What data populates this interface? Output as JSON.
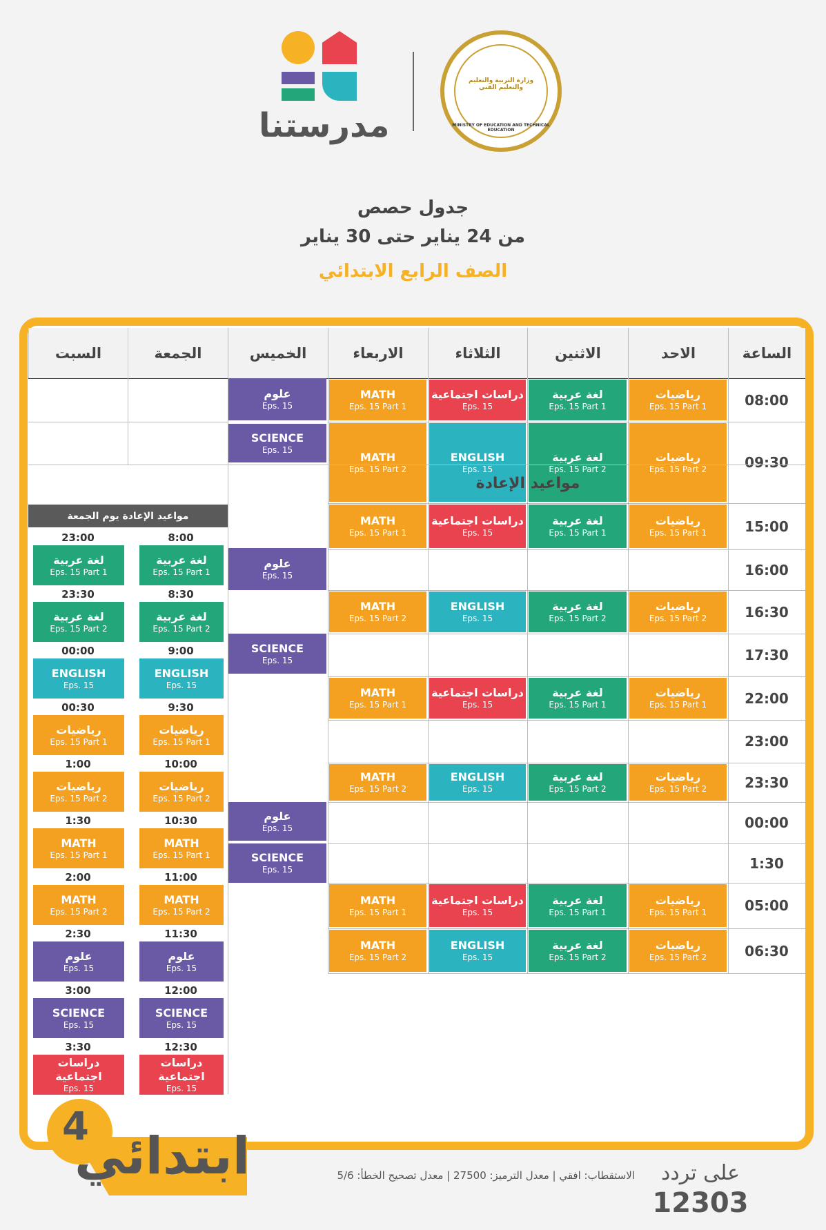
{
  "header": {
    "brand_logo_text": "مدرستنا",
    "ministry_seal_text_en": "MINISTRY OF EDUCATION AND TECHNICAL EDUCATION",
    "ministry_seal_text_ar": "وزارة التربية والتعليم والتعليم الفني",
    "title": "جدول حصص",
    "date_range": "من 24 يناير حتى 30 يناير",
    "grade": "الصف الرابع الابتدائي"
  },
  "colors": {
    "math": "#f4a020",
    "arabic": "#22a67a",
    "social": "#e8434f",
    "english": "#2bb3c0",
    "science": "#6a5aa6",
    "frame": "#f6b224",
    "replay_header": "#5a5a5a"
  },
  "columns": [
    "الساعة",
    "الاحد",
    "الاثنين",
    "الثلاثاء",
    "الاربعاء",
    "الخميس",
    "الجمعة",
    "السبت"
  ],
  "replay_title": "مواعيد الإعادة",
  "rows": [
    {
      "time": "08:00",
      "cells": [
        {
          "s": "رياضيات",
          "e": "Eps. 15 Part 1",
          "c": "math"
        },
        {
          "s": "لغة عربية",
          "e": "Eps. 15 Part 1",
          "c": "arabic"
        },
        {
          "s": "دراسات اجتماعية",
          "e": "Eps. 15",
          "c": "social"
        },
        {
          "s": "MATH",
          "e": "Eps. 15 Part 1",
          "c": "math"
        }
      ],
      "thu": {
        "s": "علوم",
        "e": "Eps. 15",
        "c": "science"
      }
    },
    {
      "time": "09:30",
      "cells": [
        {
          "s": "رياضيات",
          "e": "Eps. 15 Part 2",
          "c": "math"
        },
        {
          "s": "لغة عربية",
          "e": "Eps. 15 Part 2",
          "c": "arabic"
        },
        {
          "s": "ENGLISH",
          "e": "Eps. 15",
          "c": "english"
        },
        {
          "s": "MATH",
          "e": "Eps. 15 Part 2",
          "c": "math"
        }
      ],
      "thu": {
        "s": "SCIENCE",
        "e": "Eps. 15",
        "c": "science"
      }
    },
    {
      "time": "15:00",
      "cells": [
        {
          "s": "رياضيات",
          "e": "Eps. 15 Part 1",
          "c": "math"
        },
        {
          "s": "لغة عربية",
          "e": "Eps. 15 Part 1",
          "c": "arabic"
        },
        {
          "s": "دراسات اجتماعية",
          "e": "Eps. 15",
          "c": "social"
        },
        {
          "s": "MATH",
          "e": "Eps. 15 Part 1",
          "c": "math"
        }
      ]
    },
    {
      "time": "16:00",
      "cells": [],
      "thu": {
        "s": "علوم",
        "e": "Eps. 15",
        "c": "science"
      }
    },
    {
      "time": "16:30",
      "cells": [
        {
          "s": "رياضيات",
          "e": "Eps. 15 Part 2",
          "c": "math"
        },
        {
          "s": "لغة عربية",
          "e": "Eps. 15 Part 2",
          "c": "arabic"
        },
        {
          "s": "ENGLISH",
          "e": "Eps. 15",
          "c": "english"
        },
        {
          "s": "MATH",
          "e": "Eps. 15 Part 2",
          "c": "math"
        }
      ]
    },
    {
      "time": "17:30",
      "cells": [],
      "thu": {
        "s": "SCIENCE",
        "e": "Eps. 15",
        "c": "science"
      }
    },
    {
      "time": "22:00",
      "cells": [
        {
          "s": "رياضيات",
          "e": "Eps. 15 Part 1",
          "c": "math"
        },
        {
          "s": "لغة عربية",
          "e": "Eps. 15 Part 1",
          "c": "arabic"
        },
        {
          "s": "دراسات اجتماعية",
          "e": "Eps. 15",
          "c": "social"
        },
        {
          "s": "MATH",
          "e": "Eps. 15 Part 1",
          "c": "math"
        }
      ]
    },
    {
      "time": "23:00",
      "cells": []
    },
    {
      "time": "23:30",
      "cells": [
        {
          "s": "رياضيات",
          "e": "Eps. 15 Part 2",
          "c": "math"
        },
        {
          "s": "لغة عربية",
          "e": "Eps. 15 Part 2",
          "c": "arabic"
        },
        {
          "s": "ENGLISH",
          "e": "Eps. 15",
          "c": "english"
        },
        {
          "s": "MATH",
          "e": "Eps. 15 Part 2",
          "c": "math"
        }
      ]
    },
    {
      "time": "00:00",
      "cells": [],
      "thu": {
        "s": "علوم",
        "e": "Eps. 15",
        "c": "science"
      }
    },
    {
      "time": "1:30",
      "cells": [],
      "thu": {
        "s": "SCIENCE",
        "e": "Eps. 15",
        "c": "science"
      }
    },
    {
      "time": "05:00",
      "cells": [
        {
          "s": "رياضيات",
          "e": "Eps. 15 Part 1",
          "c": "math"
        },
        {
          "s": "لغة عربية",
          "e": "Eps. 15 Part 1",
          "c": "arabic"
        },
        {
          "s": "دراسات اجتماعية",
          "e": "Eps. 15",
          "c": "social"
        },
        {
          "s": "MATH",
          "e": "Eps. 15 Part 1",
          "c": "math"
        }
      ]
    },
    {
      "time": "06:30",
      "cells": [
        {
          "s": "رياضيات",
          "e": "Eps. 15 Part 2",
          "c": "math"
        },
        {
          "s": "لغة عربية",
          "e": "Eps. 15 Part 2",
          "c": "arabic"
        },
        {
          "s": "ENGLISH",
          "e": "Eps. 15",
          "c": "english"
        },
        {
          "s": "MATH",
          "e": "Eps. 15 Part 2",
          "c": "math"
        }
      ]
    }
  ],
  "friday_replay": {
    "title": "مواعيد الإعادة يوم الجمعة",
    "subjects": [
      {
        "s": "لغة عربية",
        "e": "Eps. 15 Part 1",
        "c": "arabic"
      },
      {
        "s": "لغة عربية",
        "e": "Eps. 15 Part 2",
        "c": "arabic"
      },
      {
        "s": "ENGLISH",
        "e": "Eps. 15",
        "c": "english"
      },
      {
        "s": "رياضيات",
        "e": "Eps. 15 Part 1",
        "c": "math"
      },
      {
        "s": "رياضيات",
        "e": "Eps. 15 Part 2",
        "c": "math"
      },
      {
        "s": "MATH",
        "e": "Eps. 15 Part 1",
        "c": "math"
      },
      {
        "s": "MATH",
        "e": "Eps. 15 Part 2",
        "c": "math"
      },
      {
        "s": "علوم",
        "e": "Eps. 15",
        "c": "science"
      },
      {
        "s": "SCIENCE",
        "e": "Eps. 15",
        "c": "science"
      },
      {
        "s": "دراسات اجتماعية",
        "e": "Eps. 15",
        "c": "social"
      }
    ],
    "saturday_times": [
      "23:00",
      "23:30",
      "00:00",
      "00:30",
      "1:00",
      "1:30",
      "2:00",
      "2:30",
      "3:00",
      "3:30"
    ],
    "friday_times": [
      "8:00",
      "8:30",
      "9:00",
      "9:30",
      "10:00",
      "10:30",
      "11:00",
      "11:30",
      "12:00",
      "12:30"
    ]
  },
  "footer": {
    "grade_badge": "ابتدائي",
    "grade_number": "4",
    "frequency_label": "على تردد",
    "frequency": "12303",
    "signal_info": "الاستقطاب: افقي | معدل الترميز: 27500 | معدل تصحيح الخطأ: 5/6"
  }
}
